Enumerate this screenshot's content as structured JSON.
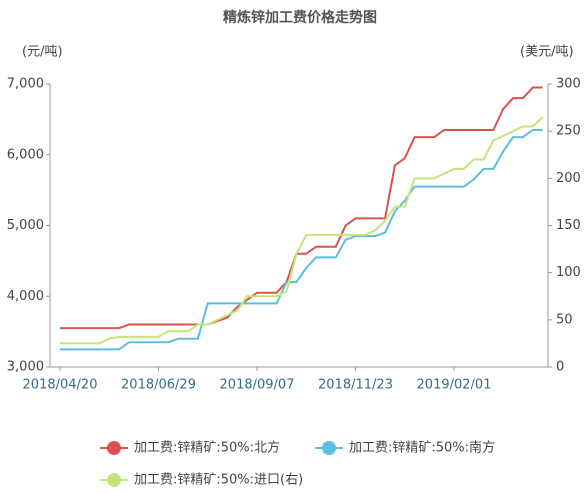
{
  "chart_data": {
    "type": "line",
    "title": "精炼锌加工费价格走势图",
    "y_label": "(元/吨)",
    "y2_label": "(美元/吨)",
    "categories": [
      "2018/04/20",
      null,
      null,
      null,
      null,
      null,
      null,
      null,
      null,
      null,
      "2018/06/29",
      null,
      null,
      null,
      null,
      null,
      null,
      null,
      null,
      null,
      "2018/09/07",
      null,
      null,
      null,
      null,
      null,
      null,
      null,
      null,
      null,
      "2018/11/23",
      null,
      null,
      null,
      null,
      null,
      null,
      null,
      null,
      null,
      "2019/02/01",
      null,
      null,
      null,
      null,
      null,
      null,
      null,
      null,
      null
    ],
    "ylim": [
      3000,
      7000
    ],
    "yticks": [
      {
        "value": 3000,
        "label": "3,000"
      },
      {
        "value": 4000,
        "label": "4,000"
      },
      {
        "value": 5000,
        "label": "5,000"
      },
      {
        "value": 6000,
        "label": "6,000"
      },
      {
        "value": 7000,
        "label": "7,000"
      }
    ],
    "y2lim": [
      0,
      300
    ],
    "y2ticks": [
      0,
      50,
      100,
      150,
      200,
      250,
      300
    ],
    "legend": "bottom",
    "series": [
      {
        "name": "加工费:锌精矿:50%:北方",
        "color": "#d9534f",
        "values": [
          3550,
          3550,
          3550,
          3550,
          3550,
          3550,
          3550,
          3600,
          3600,
          3600,
          3600,
          3600,
          3600,
          3600,
          3600,
          3600,
          3650,
          3700,
          3850,
          3950,
          4050,
          4050,
          4050,
          4200,
          4600,
          4600,
          4700,
          4700,
          4700,
          5000,
          5100,
          5100,
          5100,
          5100,
          5850,
          5950,
          6250,
          6250,
          6250,
          6350,
          6350,
          6350,
          6350,
          6350,
          6350,
          6650,
          6800,
          6800,
          6950,
          6950
        ]
      },
      {
        "name": "加工费:锌精矿:50%:南方",
        "color": "#5bc0de",
        "values": [
          3250,
          3250,
          3250,
          3250,
          3250,
          3250,
          3250,
          3350,
          3350,
          3350,
          3350,
          3350,
          3400,
          3400,
          3400,
          3900,
          3900,
          3900,
          3900,
          3900,
          3900,
          3900,
          3900,
          4200,
          4200,
          4400,
          4550,
          4550,
          4550,
          4800,
          4850,
          4850,
          4850,
          4900,
          5200,
          5350,
          5550,
          5550,
          5550,
          5550,
          5550,
          5550,
          5650,
          5800,
          5800,
          6050,
          6250,
          6250,
          6350,
          6350
        ]
      },
      {
        "name": "加工费:锌精矿:50%:进口(右)",
        "color": "#c5e57a",
        "axis": "y2",
        "values": [
          25,
          25,
          25,
          25,
          25,
          30,
          32,
          32,
          32,
          32,
          32,
          38,
          38,
          38,
          45,
          45,
          50,
          55,
          60,
          75,
          75,
          75,
          75,
          80,
          120,
          140,
          140,
          140,
          140,
          140,
          140,
          140,
          145,
          155,
          170,
          170,
          200,
          200,
          200,
          205,
          210,
          210,
          220,
          220,
          240,
          245,
          250,
          255,
          255,
          265
        ]
      }
    ]
  }
}
